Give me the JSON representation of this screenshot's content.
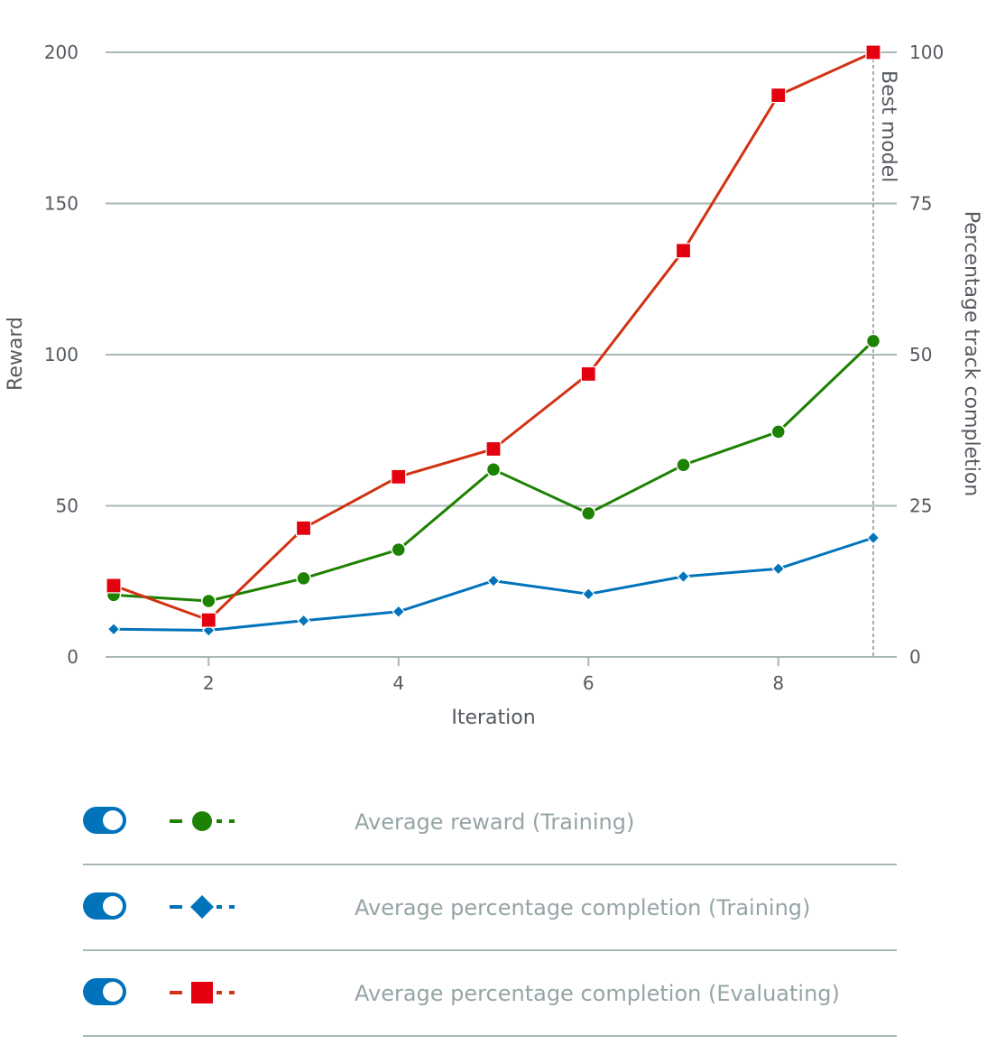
{
  "chart_data": {
    "type": "line",
    "xlabel": "Iteration",
    "ylabel_left": "Reward",
    "ylabel_right": "Percentage track completion",
    "xlim": [
      1,
      9
    ],
    "x_ticks": [
      2,
      4,
      6,
      8
    ],
    "ylim_left": [
      0,
      200
    ],
    "y_ticks_left": [
      0,
      50,
      100,
      150,
      200
    ],
    "ylim_right": [
      0,
      100
    ],
    "y_ticks_right": [
      0,
      25,
      50,
      75,
      100
    ],
    "grid": true,
    "annotations": [
      {
        "text": "Best model",
        "x": 9,
        "style": "dashed-vertical-line"
      }
    ],
    "x": [
      1,
      2,
      3,
      4,
      5,
      6,
      7,
      8,
      9
    ],
    "series": [
      {
        "name": "Average reward (Training)",
        "axis": "left",
        "color": "#1d8102",
        "marker": "circle",
        "values": [
          20.5,
          18.5,
          26,
          35.5,
          62,
          47.5,
          63.5,
          74.5,
          104.5
        ]
      },
      {
        "name": "Average percentage completion (Training)",
        "axis": "right",
        "color": "#0073bb",
        "marker": "diamond",
        "values": [
          4.6,
          4.4,
          6,
          7.5,
          12.6,
          10.4,
          13.3,
          14.6,
          19.7
        ]
      },
      {
        "name": "Average percentage completion (Evaluating)",
        "axis": "right",
        "color": "#d13212",
        "marker": "square",
        "values": [
          11.8,
          6.1,
          21.3,
          29.8,
          34.4,
          46.8,
          67.2,
          92.9,
          100
        ]
      }
    ]
  },
  "legend": {
    "items": [
      {
        "label": "Average reward (Training)",
        "toggle_on": true,
        "marker": "circle-icon",
        "color": "#1d8102"
      },
      {
        "label": "Average percentage completion (Training)",
        "toggle_on": true,
        "marker": "diamond-icon",
        "color": "#0073bb"
      },
      {
        "label": "Average percentage completion (Evaluating)",
        "toggle_on": true,
        "marker": "square-icon",
        "color": "#d13212"
      }
    ]
  }
}
